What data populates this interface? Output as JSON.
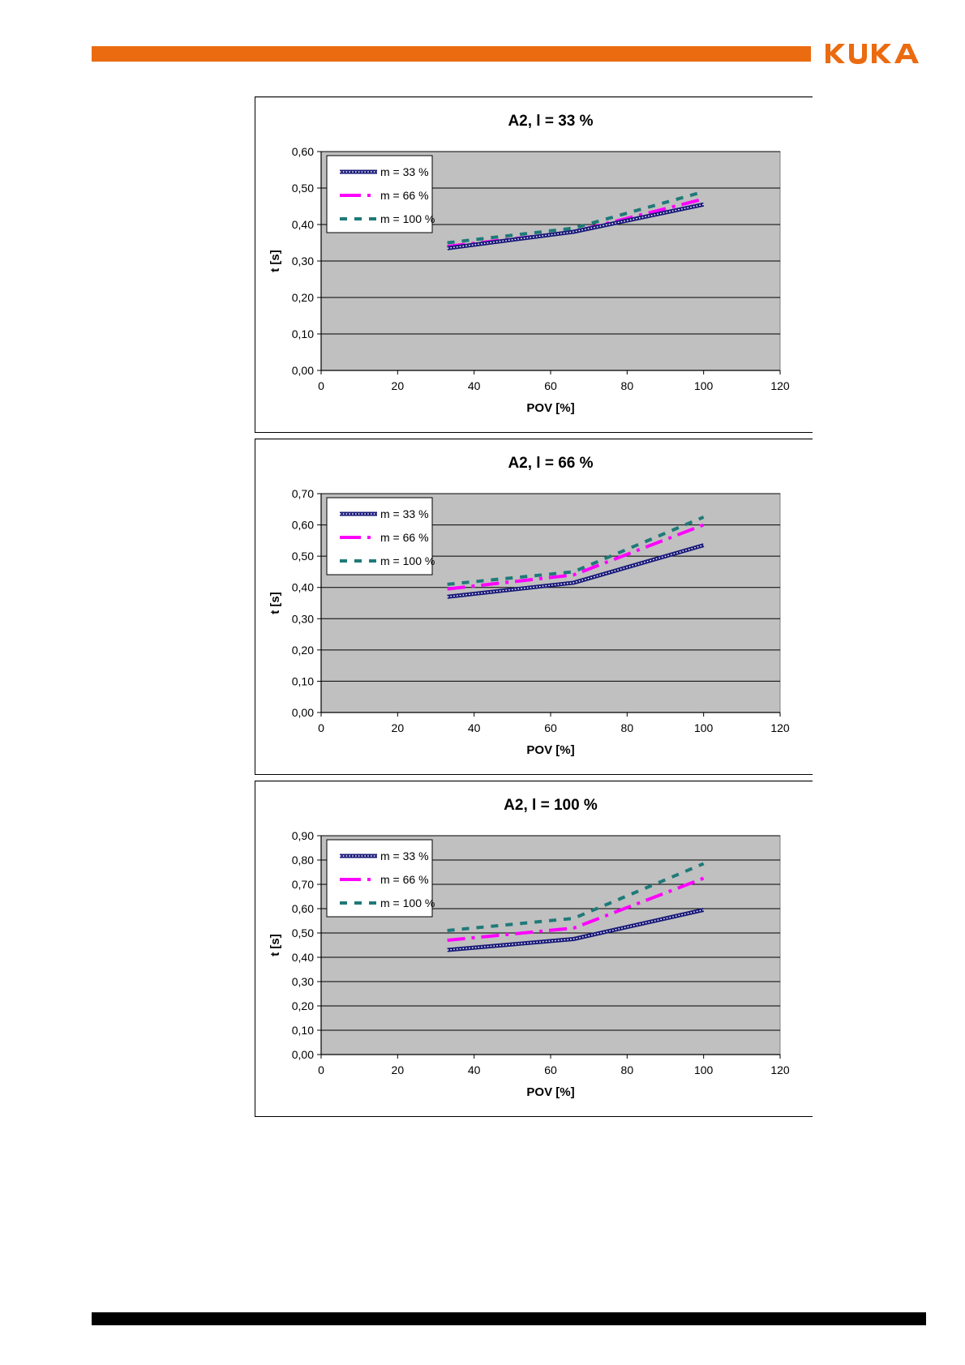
{
  "brand": {
    "logo_text": "KUKA",
    "accent_color": "#eb6b10",
    "footer_color": "#000000"
  },
  "chart_data": [
    {
      "type": "line",
      "title": "A2, l = 33 %",
      "xlabel": "POV [%]",
      "ylabel": "t [s]",
      "xlim": [
        0,
        120
      ],
      "ylim": [
        0,
        0.6
      ],
      "x_ticks": [
        0,
        20,
        40,
        60,
        80,
        100,
        120
      ],
      "y_ticks": [
        "0,00",
        "0,10",
        "0,20",
        "0,30",
        "0,40",
        "0,50",
        "0,60"
      ],
      "grid": true,
      "legend": "top-left",
      "x": [
        33,
        66,
        100
      ],
      "series": [
        {
          "name": "m = 33 %",
          "values": [
            0.335,
            0.38,
            0.455
          ],
          "color": "#1a1a7a",
          "style": "hatched"
        },
        {
          "name": "m = 66 %",
          "values": [
            0.34,
            0.38,
            0.47
          ],
          "color": "#ff00ff",
          "style": "long-dash"
        },
        {
          "name": "m = 100 %",
          "values": [
            0.35,
            0.39,
            0.49
          ],
          "color": "#1f7a78",
          "style": "short-dash"
        }
      ]
    },
    {
      "type": "line",
      "title": "A2, l = 66 %",
      "xlabel": "POV [%]",
      "ylabel": "t [s]",
      "xlim": [
        0,
        120
      ],
      "ylim": [
        0,
        0.7
      ],
      "x_ticks": [
        0,
        20,
        40,
        60,
        80,
        100,
        120
      ],
      "y_ticks": [
        "0,00",
        "0,10",
        "0,20",
        "0,30",
        "0,40",
        "0,50",
        "0,60",
        "0,70"
      ],
      "grid": true,
      "legend": "top-left",
      "x": [
        33,
        66,
        100
      ],
      "series": [
        {
          "name": "m = 33 %",
          "values": [
            0.37,
            0.415,
            0.535
          ],
          "color": "#1a1a7a",
          "style": "hatched"
        },
        {
          "name": "m = 66 %",
          "values": [
            0.395,
            0.44,
            0.6
          ],
          "color": "#ff00ff",
          "style": "long-dash"
        },
        {
          "name": "m = 100 %",
          "values": [
            0.41,
            0.45,
            0.625
          ],
          "color": "#1f7a78",
          "style": "short-dash"
        }
      ]
    },
    {
      "type": "line",
      "title": "A2, l = 100 %",
      "xlabel": "POV [%]",
      "ylabel": "t [s]",
      "xlim": [
        0,
        120
      ],
      "ylim": [
        0,
        0.9
      ],
      "x_ticks": [
        0,
        20,
        40,
        60,
        80,
        100,
        120
      ],
      "y_ticks": [
        "0,00",
        "0,10",
        "0,20",
        "0,30",
        "0,40",
        "0,50",
        "0,60",
        "0,70",
        "0,80",
        "0,90"
      ],
      "grid": true,
      "legend": "top-left",
      "x": [
        33,
        66,
        100
      ],
      "series": [
        {
          "name": "m = 33 %",
          "values": [
            0.43,
            0.475,
            0.595
          ],
          "color": "#1a1a7a",
          "style": "hatched"
        },
        {
          "name": "m = 66 %",
          "values": [
            0.47,
            0.52,
            0.725
          ],
          "color": "#ff00ff",
          "style": "long-dash"
        },
        {
          "name": "m = 100 %",
          "values": [
            0.51,
            0.56,
            0.785
          ],
          "color": "#1f7a78",
          "style": "short-dash"
        }
      ]
    }
  ]
}
